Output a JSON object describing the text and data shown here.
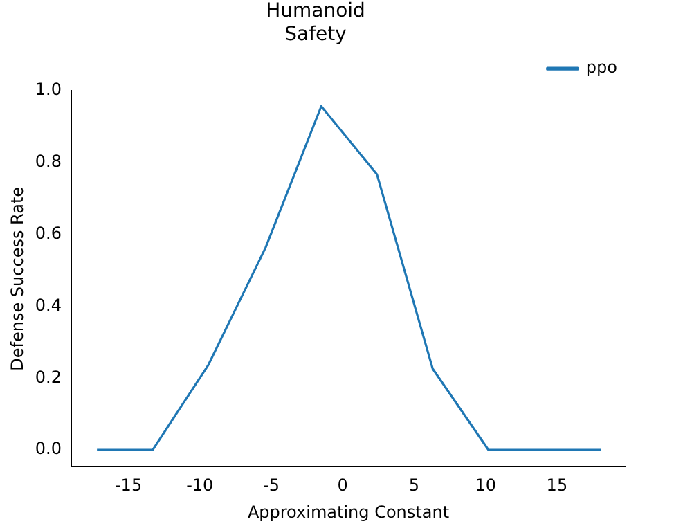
{
  "chart_data": {
    "type": "line",
    "title": "Humanoid\nSafety",
    "xlabel": "Approximating Constant",
    "ylabel": "Defense Success Rate",
    "x": [
      -17.2,
      -13.3,
      -9.4,
      -5.4,
      -1.5,
      2.4,
      6.3,
      10.2,
      14.1,
      18.1
    ],
    "series": [
      {
        "name": "ppo",
        "color": "#1f77b4",
        "values": [
          0,
          0,
          0.237,
          0.563,
          0.957,
          0.767,
          0.226,
          0,
          0,
          0
        ]
      }
    ],
    "xlim": [
      -19.0,
      19.8
    ],
    "xticks": [
      -15,
      -10,
      -5,
      0,
      5,
      10,
      15
    ],
    "ylim": [
      -0.047,
      1.0
    ],
    "yticks": [
      {
        "value": 0,
        "label": "0.0"
      },
      {
        "value": 0.2,
        "label": "0.2"
      },
      {
        "value": 0.4,
        "label": "0.4"
      },
      {
        "value": 0.6,
        "label": "0.6"
      },
      {
        "value": 0.8,
        "label": "0.8"
      },
      {
        "value": 1.0,
        "label": "1.0"
      }
    ],
    "grid": false,
    "legend": "top right",
    "marker": "none",
    "line_style": "solid"
  }
}
